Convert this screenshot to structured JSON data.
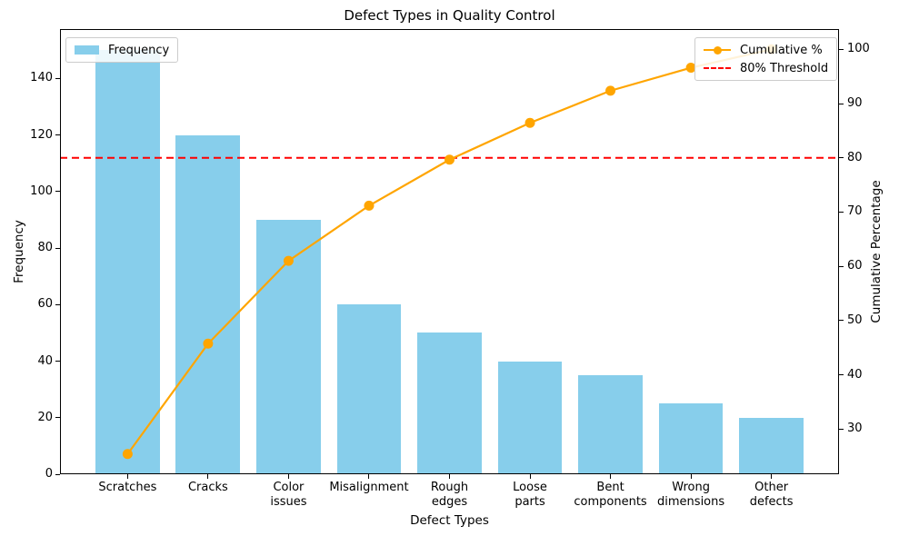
{
  "chart_data": {
    "type": "bar",
    "title": "Defect Types in Quality Control",
    "xlabel": "Defect Types",
    "ylabel_left": "Frequency",
    "ylabel_right": "Cumulative Percentage",
    "categories": [
      "Scratches",
      "Cracks",
      "Color\nissues",
      "Misalignment",
      "Rough\nedges",
      "Loose\nparts",
      "Bent\ncomponents",
      "Wrong\ndimensions",
      "Other\ndefects"
    ],
    "series": [
      {
        "name": "Frequency",
        "type": "bar",
        "axis": "left",
        "color": "#87CEEB",
        "values": [
          150,
          120,
          90,
          60,
          50,
          40,
          35,
          25,
          20
        ]
      },
      {
        "name": "Cumulative %",
        "type": "line",
        "axis": "right",
        "color": "#FFA500",
        "values": [
          25.42,
          45.76,
          61.02,
          71.19,
          79.66,
          86.44,
          92.37,
          96.61,
          100.0
        ]
      }
    ],
    "threshold": {
      "label": "80% Threshold",
      "value": 80,
      "color": "#FF0000",
      "style": "dashed"
    },
    "ylim_left": [
      0,
      157.5
    ],
    "ylim_right": [
      21.7,
      103.73
    ],
    "yticks_left": [
      0,
      20,
      40,
      60,
      80,
      100,
      120,
      140
    ],
    "yticks_right": [
      30,
      40,
      50,
      60,
      70,
      80,
      90,
      100
    ],
    "legend_left_position": "upper left",
    "legend_right_position": "upper right",
    "grid": false
  }
}
